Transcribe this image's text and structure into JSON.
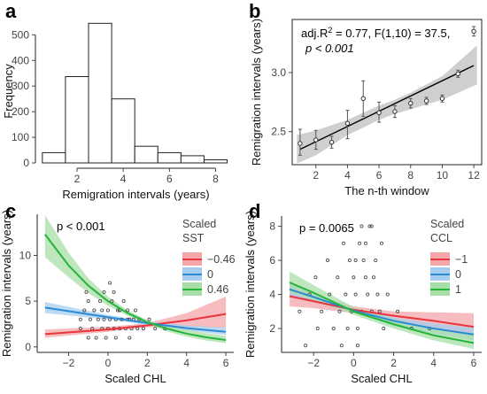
{
  "chart_data": [
    {
      "panel": "a",
      "type": "bar",
      "xlabel": "Remigration intervals (years)",
      "ylabel": "Frequency",
      "xticks": [
        2,
        4,
        6,
        8
      ],
      "yticks": [
        0,
        100,
        200,
        300,
        400,
        500
      ],
      "xlim": [
        0.2,
        8.9
      ],
      "ylim": [
        0,
        560
      ],
      "categories": [
        1,
        2,
        3,
        4,
        5,
        6,
        7,
        8
      ],
      "values": [
        40,
        337,
        545,
        250,
        65,
        40,
        28,
        12
      ]
    },
    {
      "panel": "b",
      "type": "scatter",
      "xlabel": "The n-th window",
      "ylabel": "Remigration intervals (years)",
      "xticks": [
        2,
        4,
        6,
        8,
        10,
        12
      ],
      "yticks": [
        2.5,
        3.0
      ],
      "xlim": [
        0.5,
        12.5
      ],
      "ylim": [
        2.22,
        3.45
      ],
      "annotation_line1": "adj.R",
      "annotation_sup": "2",
      "annotation_rest": " = 0.77, F(1,10) = 37.5,",
      "annotation_line2": "p < 0.001",
      "points": [
        {
          "x": 1,
          "y": 2.4,
          "lo": 2.3,
          "hi": 2.52
        },
        {
          "x": 2,
          "y": 2.43,
          "lo": 2.35,
          "hi": 2.51
        },
        {
          "x": 3,
          "y": 2.41,
          "lo": 2.36,
          "hi": 2.46
        },
        {
          "x": 4,
          "y": 2.57,
          "lo": 2.44,
          "hi": 2.68
        },
        {
          "x": 5,
          "y": 2.78,
          "lo": 2.63,
          "hi": 2.93
        },
        {
          "x": 6,
          "y": 2.66,
          "lo": 2.58,
          "hi": 2.75
        },
        {
          "x": 7,
          "y": 2.67,
          "lo": 2.62,
          "hi": 2.72
        },
        {
          "x": 8,
          "y": 2.74,
          "lo": 2.7,
          "hi": 2.78
        },
        {
          "x": 9,
          "y": 2.76,
          "lo": 2.73,
          "hi": 2.79
        },
        {
          "x": 10,
          "y": 2.78,
          "lo": 2.75,
          "hi": 2.81
        },
        {
          "x": 11,
          "y": 2.99,
          "lo": 2.96,
          "hi": 3.02
        },
        {
          "x": 12,
          "y": 3.35,
          "lo": 3.31,
          "hi": 3.39
        }
      ],
      "fit": {
        "x0": 1,
        "y0": 2.35,
        "x1": 12,
        "y1": 3.06
      },
      "band": {
        "x": [
          0.8,
          2,
          4,
          6,
          7,
          8,
          10,
          12.2
        ],
        "lo": [
          2.23,
          2.3,
          2.47,
          2.6,
          2.65,
          2.69,
          2.77,
          2.9
        ],
        "hi": [
          2.47,
          2.51,
          2.6,
          2.72,
          2.77,
          2.83,
          2.97,
          3.23
        ]
      }
    },
    {
      "panel": "c",
      "type": "line",
      "xlabel": "Scaled CHL",
      "ylabel": "Remigration intervals (years)",
      "xticks": [
        -2,
        0,
        2,
        4,
        6
      ],
      "yticks": [
        0,
        5,
        10
      ],
      "xlim": [
        -3.6,
        6.4
      ],
      "ylim": [
        -0.6,
        14.5
      ],
      "annotation": "p < 0.001",
      "legend_title_1": "Scaled",
      "legend_title_2": "SST",
      "legend_position": "top-right",
      "series": [
        {
          "name": "−0.46",
          "color": "#e8343c",
          "fill": "#f4a6a9",
          "x": [
            -3.2,
            0,
            2,
            4,
            6
          ],
          "y": [
            1.4,
            1.9,
            2.35,
            2.9,
            3.6
          ],
          "lo": [
            1.0,
            1.65,
            2.15,
            2.2,
            2.1
          ],
          "hi": [
            1.9,
            2.2,
            2.6,
            3.7,
            5.5
          ]
        },
        {
          "name": "0",
          "color": "#2b8ad4",
          "fill": "#a6cdee",
          "x": [
            -3.2,
            0,
            2,
            4,
            6
          ],
          "y": [
            4.3,
            3.25,
            2.6,
            2.05,
            1.65
          ],
          "lo": [
            3.7,
            3.0,
            2.4,
            1.8,
            1.3
          ],
          "hi": [
            4.9,
            3.5,
            2.8,
            2.35,
            2.1
          ]
        },
        {
          "name": "0.46",
          "color": "#25b43a",
          "fill": "#a8dfa8",
          "x": [
            -3.2,
            -2,
            -1,
            0,
            1,
            2,
            3,
            4,
            5,
            6
          ],
          "y": [
            12.3,
            8.9,
            6.7,
            5.0,
            3.7,
            2.7,
            2.0,
            1.45,
            1.05,
            0.75
          ],
          "lo": [
            9.8,
            7.6,
            5.9,
            4.5,
            3.4,
            2.5,
            1.7,
            1.1,
            0.7,
            0.4
          ],
          "hi": [
            14.4,
            10.3,
            7.5,
            5.5,
            4.0,
            2.95,
            2.3,
            1.9,
            1.5,
            1.2
          ]
        }
      ],
      "scatter": [
        [
          -1.4,
          3
        ],
        [
          -1.4,
          2
        ],
        [
          -1.2,
          4
        ],
        [
          -1,
          1
        ],
        [
          -1,
          5
        ],
        [
          -0.9,
          3
        ],
        [
          -0.8,
          2
        ],
        [
          -0.7,
          4
        ],
        [
          -0.6,
          1
        ],
        [
          -0.5,
          3
        ],
        [
          -0.4,
          5
        ],
        [
          -0.3,
          2
        ],
        [
          -0.2,
          3
        ],
        [
          -0.1,
          1
        ],
        [
          0,
          4
        ],
        [
          0,
          2
        ],
        [
          0.1,
          3
        ],
        [
          0.2,
          5
        ],
        [
          0.3,
          2
        ],
        [
          0.4,
          3
        ],
        [
          0.4,
          1
        ],
        [
          0.5,
          4
        ],
        [
          0.6,
          2
        ],
        [
          0.7,
          3
        ],
        [
          0.8,
          5
        ],
        [
          0.9,
          2
        ],
        [
          1,
          3
        ],
        [
          1,
          4
        ],
        [
          1.1,
          1
        ],
        [
          1.2,
          2
        ],
        [
          1.3,
          3
        ],
        [
          1.4,
          4
        ],
        [
          1.5,
          2
        ],
        [
          -0.2,
          6
        ],
        [
          0.3,
          6
        ],
        [
          0.1,
          7
        ],
        [
          -1.1,
          6
        ],
        [
          -0.3,
          4
        ],
        [
          0.6,
          4
        ],
        [
          1.1,
          3
        ],
        [
          1.6,
          3
        ],
        [
          1.8,
          2
        ],
        [
          2.1,
          3
        ],
        [
          2.4,
          2
        ],
        [
          2.9,
          2
        ]
      ]
    },
    {
      "panel": "d",
      "type": "line",
      "xlabel": "Scaled CHL",
      "ylabel": "Remigration intervals (years)",
      "xticks": [
        -2,
        0,
        2,
        4,
        6
      ],
      "yticks": [
        2,
        4,
        6,
        8
      ],
      "xlim": [
        -3.6,
        6.4
      ],
      "ylim": [
        0.6,
        8.6
      ],
      "annotation": "p = 0.0065",
      "legend_title_1": "Scaled",
      "legend_title_2": "CCL",
      "legend_position": "top-right",
      "series": [
        {
          "name": "−1",
          "color": "#e8343c",
          "fill": "#f4a6a9",
          "x": [
            -3.2,
            -2,
            0,
            2,
            4,
            6
          ],
          "y": [
            3.9,
            3.6,
            3.1,
            2.75,
            2.45,
            2.1
          ],
          "lo": [
            3.3,
            3.2,
            2.9,
            2.5,
            1.95,
            1.5
          ],
          "hi": [
            4.6,
            4.05,
            3.3,
            3.0,
            2.95,
            2.9
          ]
        },
        {
          "name": "0",
          "color": "#2b8ad4",
          "fill": "#a6cdee",
          "x": [
            -3.2,
            -2,
            0,
            2,
            4,
            6
          ],
          "y": [
            4.3,
            3.85,
            3.05,
            2.45,
            2.0,
            1.65
          ],
          "lo": [
            3.9,
            3.6,
            2.9,
            2.25,
            1.7,
            1.3
          ],
          "hi": [
            4.7,
            4.1,
            3.2,
            2.65,
            2.3,
            2.05
          ]
        },
        {
          "name": "1",
          "color": "#25b43a",
          "fill": "#a8dfa8",
          "x": [
            -3.2,
            -2,
            0,
            2,
            4,
            6
          ],
          "y": [
            4.7,
            4.1,
            3.0,
            2.25,
            1.6,
            1.15
          ],
          "lo": [
            4.1,
            3.7,
            2.8,
            2.0,
            1.3,
            0.8
          ],
          "hi": [
            5.35,
            4.55,
            3.25,
            2.55,
            2.0,
            1.6
          ]
        }
      ],
      "scatter": [
        [
          -2.7,
          3
        ],
        [
          -2.4,
          1
        ],
        [
          -2.2,
          4
        ],
        [
          -1.9,
          5
        ],
        [
          -1.8,
          2
        ],
        [
          -1.6,
          3
        ],
        [
          -1.3,
          6
        ],
        [
          -1.2,
          4
        ],
        [
          -1,
          2
        ],
        [
          -0.8,
          5
        ],
        [
          -0.7,
          3
        ],
        [
          -0.5,
          7
        ],
        [
          -0.4,
          4
        ],
        [
          -0.3,
          2
        ],
        [
          -0.2,
          6
        ],
        [
          -0.1,
          3
        ],
        [
          0,
          5
        ],
        [
          0.1,
          4
        ],
        [
          0.2,
          2
        ],
        [
          0.3,
          7
        ],
        [
          0.4,
          3
        ],
        [
          0.5,
          6
        ],
        [
          0.6,
          5
        ],
        [
          0.7,
          4
        ],
        [
          0.8,
          8
        ],
        [
          0.9,
          3
        ],
        [
          1,
          5
        ],
        [
          1.1,
          6
        ],
        [
          1.2,
          4
        ],
        [
          1.3,
          3
        ],
        [
          1.5,
          2
        ],
        [
          1.7,
          4
        ],
        [
          2.2,
          3
        ],
        [
          2.9,
          2
        ],
        [
          3.8,
          2
        ],
        [
          0.4,
          8
        ],
        [
          0.6,
          7
        ],
        [
          0.9,
          8
        ],
        [
          0.2,
          1
        ],
        [
          -0.6,
          1
        ],
        [
          1.4,
          7
        ],
        [
          0.1,
          6
        ]
      ]
    }
  ]
}
